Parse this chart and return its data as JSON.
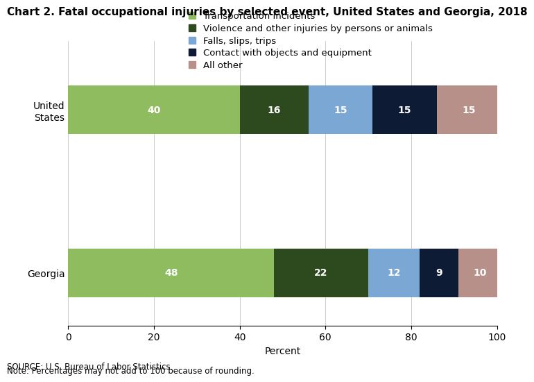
{
  "title": "Chart 2. Fatal occupational injuries by selected event, United States and Georgia, 2018",
  "categories": [
    "United\nStates",
    "Georgia"
  ],
  "segments": [
    {
      "label": "Transportation incidents",
      "color": "#8fbc5e",
      "values": [
        40,
        48
      ]
    },
    {
      "label": "Violence and other injuries by persons or animals",
      "color": "#2d4a1e",
      "values": [
        16,
        22
      ]
    },
    {
      "label": "Falls, slips, trips",
      "color": "#7ba7d4",
      "values": [
        15,
        12
      ]
    },
    {
      "label": "Contact with objects and equipment",
      "color": "#0d1b35",
      "values": [
        15,
        9
      ]
    },
    {
      "label": "All other",
      "color": "#b8908a",
      "values": [
        15,
        10
      ]
    }
  ],
  "xlabel": "Percent",
  "xlim": [
    0,
    100
  ],
  "xticks": [
    0,
    20,
    40,
    60,
    80,
    100
  ],
  "source_line1": "SOURCE: U.S. Bureau of Labor Statistics.",
  "source_line2": "Note: Percentages may not add to 100 because of rounding.",
  "title_fontsize": 11,
  "label_fontsize": 10,
  "tick_fontsize": 10,
  "bar_height": 0.6,
  "text_color_white": "#ffffff",
  "background_color": "#ffffff",
  "legend_fontsize": 9.5
}
